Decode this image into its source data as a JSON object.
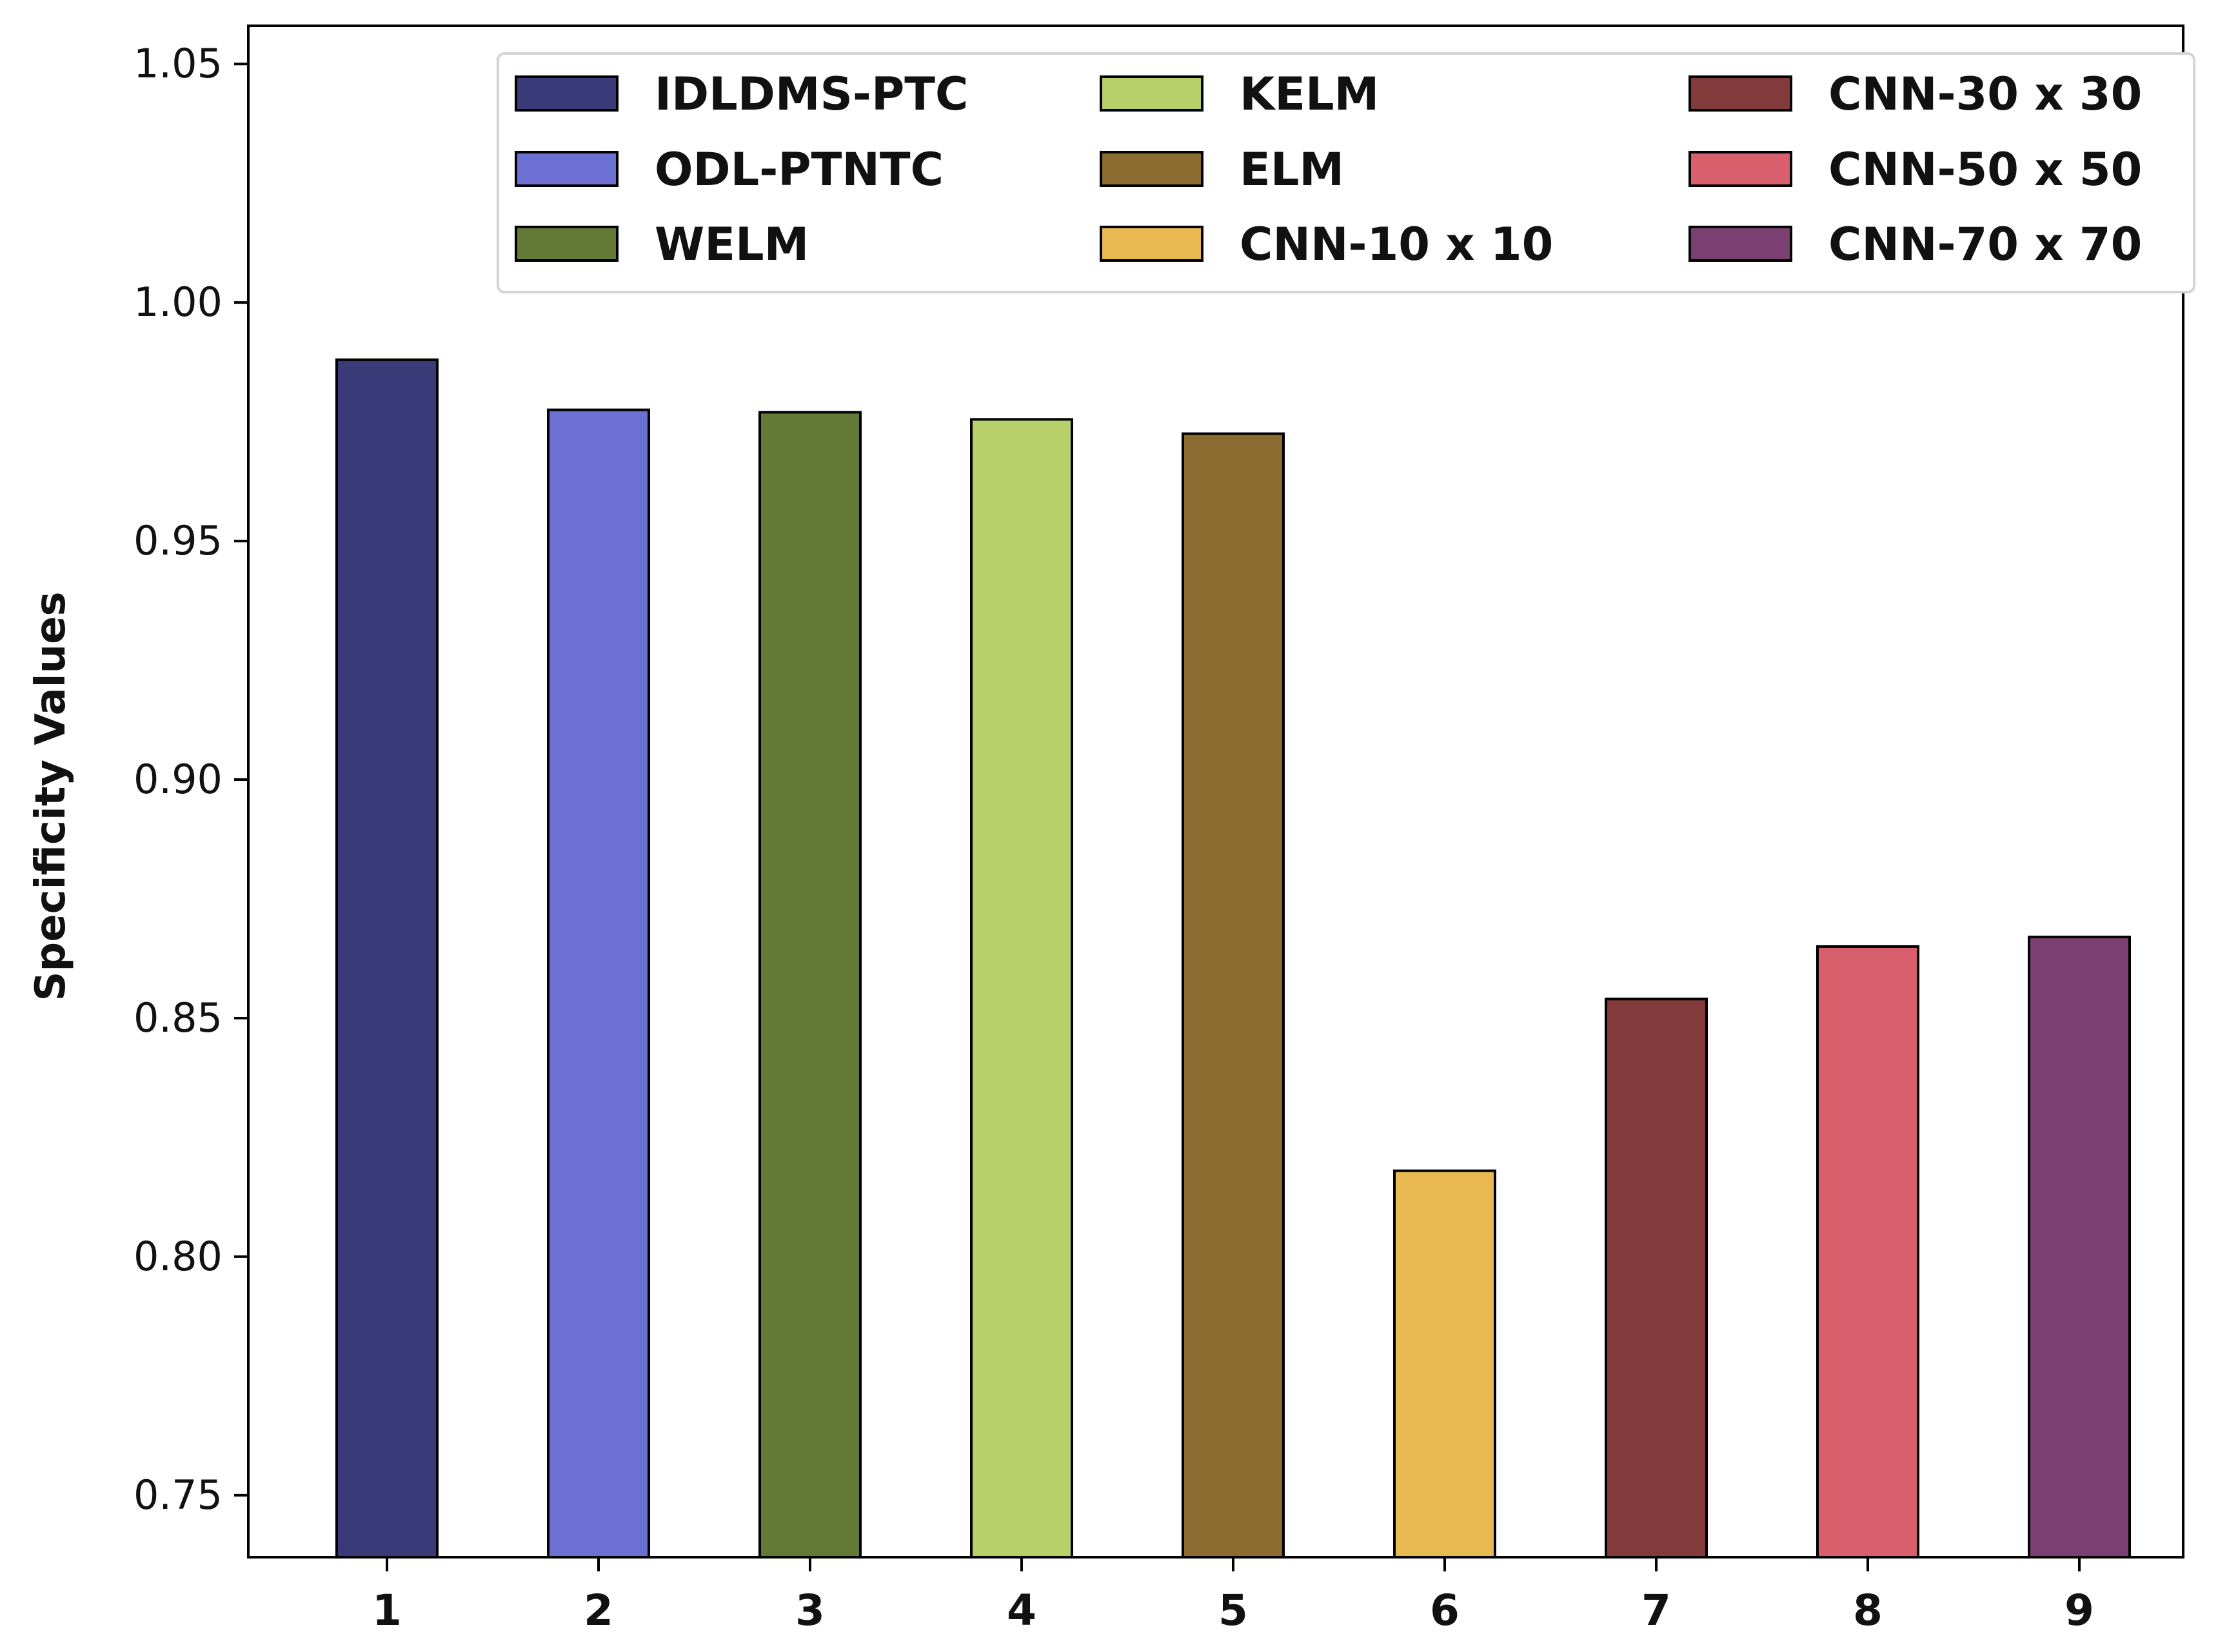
{
  "chart_data": {
    "type": "bar",
    "categories": [
      "1",
      "2",
      "3",
      "4",
      "5",
      "6",
      "7",
      "8",
      "9"
    ],
    "values": [
      0.988,
      0.9775,
      0.977,
      0.9755,
      0.9725,
      0.818,
      0.854,
      0.865,
      0.867
    ],
    "series_names": [
      "IDLDMS-PTC",
      "ODL-PTNTC",
      "WELM",
      "KELM",
      "ELM",
      "CNN-10 x 10",
      "CNN-30 x 30",
      "CNN-50 x 50",
      "CNN-70 x 70"
    ],
    "colors": [
      "#3a3a78",
      "#6b70d2",
      "#627a36",
      "#b7d06a",
      "#8b6b30",
      "#e8b951",
      "#833a3a",
      "#d85f6b",
      "#7b3f72"
    ],
    "title": "",
    "xlabel": "",
    "ylabel": "Specificity Values",
    "ylim": [
      0.737,
      1.058
    ],
    "yticks": [
      0.75,
      0.8,
      0.85,
      0.9,
      0.95,
      1.0,
      1.05
    ],
    "ytick_labels": [
      "0.75",
      "0.80",
      "0.85",
      "0.90",
      "0.95",
      "1.00",
      "1.05"
    ],
    "grid": false,
    "legend": {
      "placement": "top-right",
      "columns": 3,
      "order": [
        0,
        1,
        2,
        3,
        4,
        5,
        6,
        7,
        8
      ]
    }
  }
}
